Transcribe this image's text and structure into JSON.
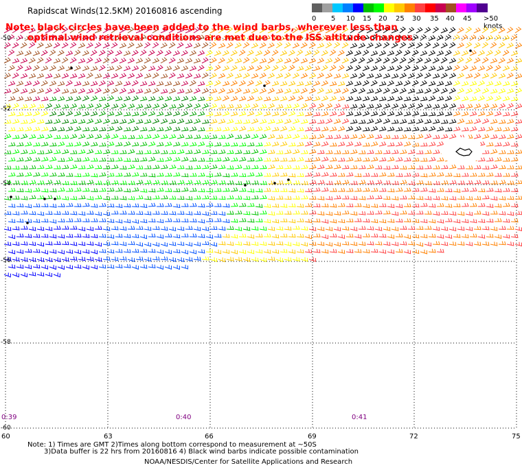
{
  "header": {
    "title": "Rapidscat Winds(12.5KM) 20160816 ascending",
    "note_line1": "Note: black circles have been added to the wind barbs, wherever less than",
    "note_line2": "optimal wind retrieval conditions are met due to the ISS altitude changes"
  },
  "scale": {
    "colors": [
      "#606060",
      "#a0a0a0",
      "#00c8ff",
      "#0080ff",
      "#0000ff",
      "#00c000",
      "#00ff00",
      "#ffff00",
      "#ffc800",
      "#ff8000",
      "#ff4040",
      "#ff0000",
      "#c80050",
      "#a05020",
      "#ff00ff",
      "#a000ff",
      "#500090"
    ],
    "labels": [
      "0",
      "5",
      "10",
      "15",
      "20",
      "25",
      "30",
      "35",
      "40",
      "45",
      ">50 knots"
    ]
  },
  "axes": {
    "lat_labels": [
      "-50",
      "-52",
      "-54",
      "-56",
      "-58",
      "-60"
    ],
    "lon_labels": [
      "60",
      "63",
      "66",
      "69",
      "72",
      "75"
    ],
    "time_labels": [
      "0:39",
      "0:40",
      "0:41"
    ]
  },
  "footer": {
    "line1": "Note: 1) Times are GMT 2)Times along bottom correspond to measurement at ~50S",
    "line2": "3)Data buffer is 22 hrs from 20160816 4) Black wind barbs indicate possible contamination",
    "line3": "NOAA/NESDIS/Center for Satellite Applications and Research"
  }
}
